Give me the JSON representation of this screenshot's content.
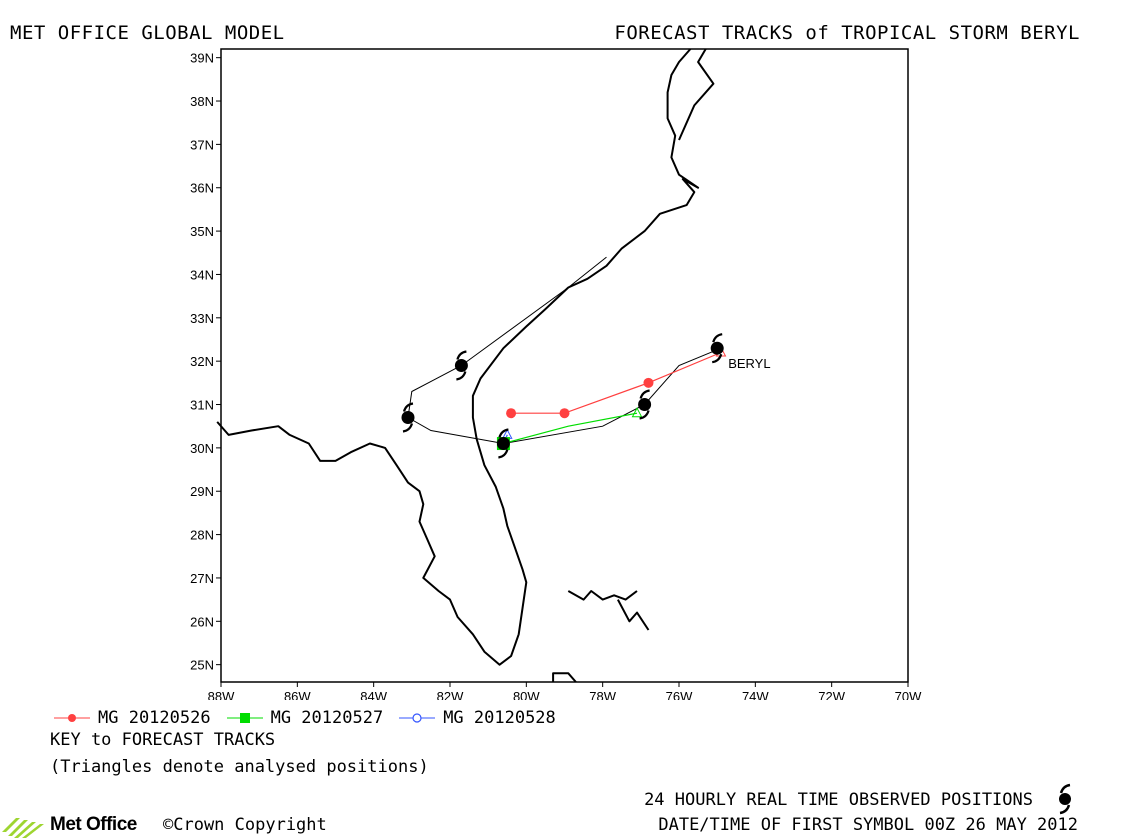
{
  "header": {
    "left_title": "MET OFFICE GLOBAL MODEL",
    "right_title": "FORECAST TRACKS of TROPICAL STORM BERYL"
  },
  "chart_data": {
    "type": "line",
    "xlabel": "",
    "ylabel": "",
    "xlim": [
      -88,
      -70
    ],
    "ylim": [
      24.6,
      39.2
    ],
    "x_ticks": [
      -88,
      -86,
      -84,
      -82,
      -80,
      -78,
      -76,
      -74,
      -72,
      -70
    ],
    "x_tick_labels": [
      "88W",
      "86W",
      "84W",
      "82W",
      "80W",
      "78W",
      "76W",
      "74W",
      "72W",
      "70W"
    ],
    "y_ticks": [
      25,
      26,
      27,
      28,
      29,
      30,
      31,
      32,
      33,
      34,
      35,
      36,
      37,
      38,
      39
    ],
    "y_tick_labels": [
      "25N",
      "26N",
      "27N",
      "28N",
      "29N",
      "30N",
      "31N",
      "32N",
      "33N",
      "34N",
      "35N",
      "36N",
      "37N",
      "38N",
      "39N"
    ],
    "observed_track": {
      "name": "24 HOURLY REAL TIME OBSERVED POSITIONS",
      "color": "#000000",
      "points": [
        {
          "lon": -75.0,
          "lat": 32.3
        },
        {
          "lon": -76.9,
          "lat": 31.0
        },
        {
          "lon": -80.6,
          "lat": 30.1
        },
        {
          "lon": -83.1,
          "lat": 30.7
        },
        {
          "lon": -81.7,
          "lat": 31.9
        }
      ],
      "track_line": [
        {
          "lon": -74.9,
          "lat": 32.3
        },
        {
          "lon": -76.0,
          "lat": 31.9
        },
        {
          "lon": -76.9,
          "lat": 31.0
        },
        {
          "lon": -78.0,
          "lat": 30.5
        },
        {
          "lon": -80.6,
          "lat": 30.1
        },
        {
          "lon": -82.5,
          "lat": 30.4
        },
        {
          "lon": -83.1,
          "lat": 30.7
        },
        {
          "lon": -83.0,
          "lat": 31.3
        },
        {
          "lon": -81.7,
          "lat": 31.9
        },
        {
          "lon": -78.9,
          "lat": 33.7
        },
        {
          "lon": -77.9,
          "lat": 34.4
        }
      ]
    },
    "storm_label": "BERYL",
    "series": [
      {
        "name": "MG 20120526",
        "color": "#ff4040",
        "marker": "filled-circle",
        "points": [
          {
            "lon": -74.9,
            "lat": 32.2
          },
          {
            "lon": -76.8,
            "lat": 31.5
          },
          {
            "lon": -79.0,
            "lat": 30.8
          },
          {
            "lon": -80.4,
            "lat": 30.8
          }
        ]
      },
      {
        "name": "MG 20120527",
        "color": "#00dd00",
        "marker": "filled-square",
        "points": [
          {
            "lon": -77.1,
            "lat": 30.8
          },
          {
            "lon": -78.9,
            "lat": 30.5
          },
          {
            "lon": -80.6,
            "lat": 30.1
          }
        ]
      },
      {
        "name": "MG 20120528",
        "color": "#3355ff",
        "marker": "open-circle",
        "points": [
          {
            "lon": -80.5,
            "lat": 30.3
          },
          {
            "lon": -80.6,
            "lat": 30.1
          }
        ]
      }
    ]
  },
  "legend": {
    "items": [
      {
        "label": "MG 20120526",
        "color": "#ff4040"
      },
      {
        "label": "MG 20120527",
        "color": "#00dd00"
      },
      {
        "label": "MG 20120528",
        "color": "#3355ff"
      }
    ],
    "key_title": "KEY to FORECAST TRACKS",
    "key_note": "(Triangles denote analysed positions)"
  },
  "footer": {
    "logo_text": "Met Office",
    "copyright": "©Crown Copyright",
    "observed_note": "24 HOURLY REAL TIME OBSERVED POSITIONS",
    "date_note": "DATE/TIME OF FIRST SYMBOL 00Z 26 MAY 2012"
  }
}
